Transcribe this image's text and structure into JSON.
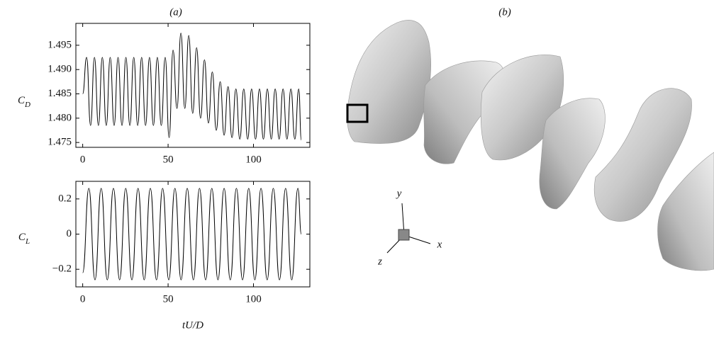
{
  "figure": {
    "panel_labels": [
      "(a)",
      "(b)"
    ],
    "axis_triad": [
      "x",
      "y",
      "z"
    ]
  },
  "chart_data": [
    {
      "type": "line",
      "ylabel": "C_D",
      "xlim": [
        -4,
        133
      ],
      "xticks": [
        0,
        50,
        100
      ],
      "ylim": [
        1.474,
        1.4995
      ],
      "yticks": [
        1.475,
        {
          "value": 1.48,
          "label": "1.480"
        },
        1.485,
        {
          "value": 1.49,
          "label": "1.490"
        },
        1.495
      ],
      "grid": false,
      "series": [
        {
          "color": "#000000",
          "x": [
            0,
            2.3,
            4.6,
            6.9,
            9.2,
            11.5,
            13.8,
            16.1,
            18.4,
            20.7,
            23,
            25.3,
            27.6,
            29.9,
            32.2,
            34.5,
            36.8,
            39.1,
            41.4,
            43.7,
            46,
            48.3,
            50.6,
            52.9,
            55.2,
            57.5,
            59.8,
            62.1,
            64.4,
            66.7,
            69,
            71.3,
            73.6,
            75.9,
            78.2,
            80.5,
            82.8,
            85.1,
            87.4,
            89.7,
            92,
            94.3,
            96.6,
            98.9,
            101.2,
            103.5,
            105.8,
            108.1,
            110.4,
            112.7,
            115,
            117.3,
            119.6,
            121.9,
            124.2,
            126.5,
            128
          ],
          "values": [
            1.485,
            1.4925,
            1.4785,
            1.4925,
            1.4785,
            1.4925,
            1.4785,
            1.4925,
            1.4785,
            1.4925,
            1.4785,
            1.4925,
            1.4785,
            1.4925,
            1.4785,
            1.4925,
            1.4785,
            1.4925,
            1.4785,
            1.4925,
            1.4785,
            1.4925,
            1.476,
            1.494,
            1.482,
            1.4975,
            1.482,
            1.497,
            1.481,
            1.4945,
            1.48,
            1.492,
            1.479,
            1.4895,
            1.4775,
            1.4875,
            1.4765,
            1.4865,
            1.476,
            1.486,
            1.4757,
            1.486,
            1.4757,
            1.486,
            1.4757,
            1.486,
            1.4757,
            1.486,
            1.4757,
            1.486,
            1.4757,
            1.486,
            1.4757,
            1.486,
            1.4757,
            1.486,
            1.4755
          ]
        }
      ]
    },
    {
      "type": "line",
      "ylabel": "C_L",
      "xlabel": "tU/D",
      "xlim": [
        -4,
        133
      ],
      "xticks": [
        0,
        50,
        100
      ],
      "ylim": [
        -0.3,
        0.3
      ],
      "yticks": [
        {
          "value": -0.2,
          "label": "−0.2"
        },
        0,
        0.2
      ],
      "grid": false,
      "series": [
        {
          "color": "#000000",
          "x": [
            0,
            3.6,
            7.2,
            10.8,
            14.4,
            18,
            21.6,
            25.2,
            28.8,
            32.4,
            36,
            39.6,
            43.2,
            46.8,
            50.4,
            54,
            57.6,
            61.2,
            64.8,
            68.4,
            72,
            75.6,
            79.2,
            82.8,
            86.4,
            90,
            93.6,
            97.2,
            100.8,
            104.4,
            108,
            111.6,
            115.2,
            118.8,
            122.4,
            126,
            128
          ],
          "values": [
            -0.22,
            0.26,
            -0.26,
            0.26,
            -0.26,
            0.26,
            -0.26,
            0.26,
            -0.26,
            0.26,
            -0.26,
            0.26,
            -0.26,
            0.26,
            -0.26,
            0.26,
            -0.26,
            0.26,
            -0.26,
            0.26,
            -0.26,
            0.26,
            -0.26,
            0.26,
            -0.26,
            0.26,
            -0.26,
            0.26,
            -0.26,
            0.26,
            -0.26,
            0.26,
            -0.26,
            0.26,
            -0.26,
            0.26,
            0
          ]
        }
      ]
    }
  ]
}
